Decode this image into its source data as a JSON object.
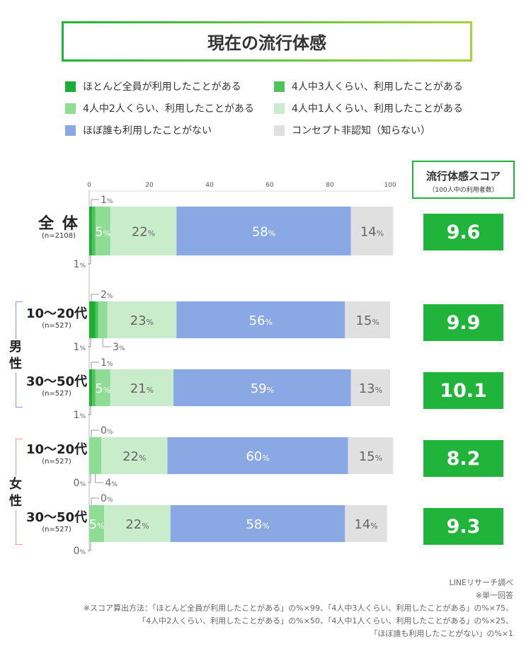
{
  "title": "現在の流行体感",
  "legend": [
    {
      "label": "ほとんど全員が利用したことがある",
      "color": "#1fae35"
    },
    {
      "label": "4人中3人くらい、利用したことがある",
      "color": "#50c25c"
    },
    {
      "label": "4人中2人くらい、利用したことがある",
      "color": "#8fdc95"
    },
    {
      "label": "4人中1人くらい、利用したことがある",
      "color": "#c9edcb"
    },
    {
      "label": "ほぼ誰も利用したことがない",
      "color": "#8aa9e4"
    },
    {
      "label": "コンセプト非認知（知らない）",
      "color": "#e0e0e0"
    }
  ],
  "score": {
    "header": "流行体感スコア",
    "subheader": "（100人中の利用者数）"
  },
  "groups": {
    "male": "男性",
    "female": "女性"
  },
  "rows": [
    {
      "name": "全 体",
      "n": "(n=2108)",
      "score": "9.6"
    },
    {
      "name": "10〜20代",
      "n": "(n=527)",
      "score": "9.9"
    },
    {
      "name": "30〜50代",
      "n": "(n=527)",
      "score": "10.1"
    },
    {
      "name": "10〜20代",
      "n": "(n=527)",
      "score": "8.2"
    },
    {
      "name": "30〜50代",
      "n": "(n=527)",
      "score": "9.3"
    }
  ],
  "notes": {
    "source": "LINEリサーチ調べ",
    "single": "※単一回答",
    "formula1": "※スコア算出方法：「ほとんど全員が利用したことがある」の%×99、「4人中3人くらい、利用したことがある」の%×75、",
    "formula2": "「4人中2人くらい、利用したことがある」の%×50、「4人中1人くらい、利用したことがある」の%×25、",
    "formula3": "「ほぼ誰も利用したことがない」の%×1"
  },
  "chart_data": {
    "type": "bar",
    "orientation": "horizontal",
    "stacked": true,
    "title": "現在の流行体感",
    "xlim": [
      0,
      100
    ],
    "xticks": [
      0,
      20,
      40,
      60,
      80,
      100
    ],
    "unit": "%",
    "categories": [
      "全体",
      "男性 10〜20代",
      "男性 30〜50代",
      "女性 10〜20代",
      "女性 30〜50代"
    ],
    "series": [
      {
        "name": "ほとんど全員が利用したことがある",
        "values": [
          1,
          2,
          1,
          0,
          0
        ]
      },
      {
        "name": "4人中3人くらい、利用したことがある",
        "values": [
          1,
          1,
          1,
          0,
          0
        ]
      },
      {
        "name": "4人中2人くらい、利用したことがある",
        "values": [
          5,
          3,
          5,
          4,
          5
        ]
      },
      {
        "name": "4人中1人くらい、利用したことがある",
        "values": [
          22,
          23,
          21,
          22,
          22
        ]
      },
      {
        "name": "ほぼ誰も利用したことがない",
        "values": [
          58,
          56,
          59,
          60,
          58
        ]
      },
      {
        "name": "コンセプト非認知（知らない）",
        "values": [
          14,
          15,
          13,
          15,
          14
        ]
      }
    ],
    "scores": [
      9.6,
      9.9,
      10.1,
      8.2,
      9.3
    ]
  }
}
